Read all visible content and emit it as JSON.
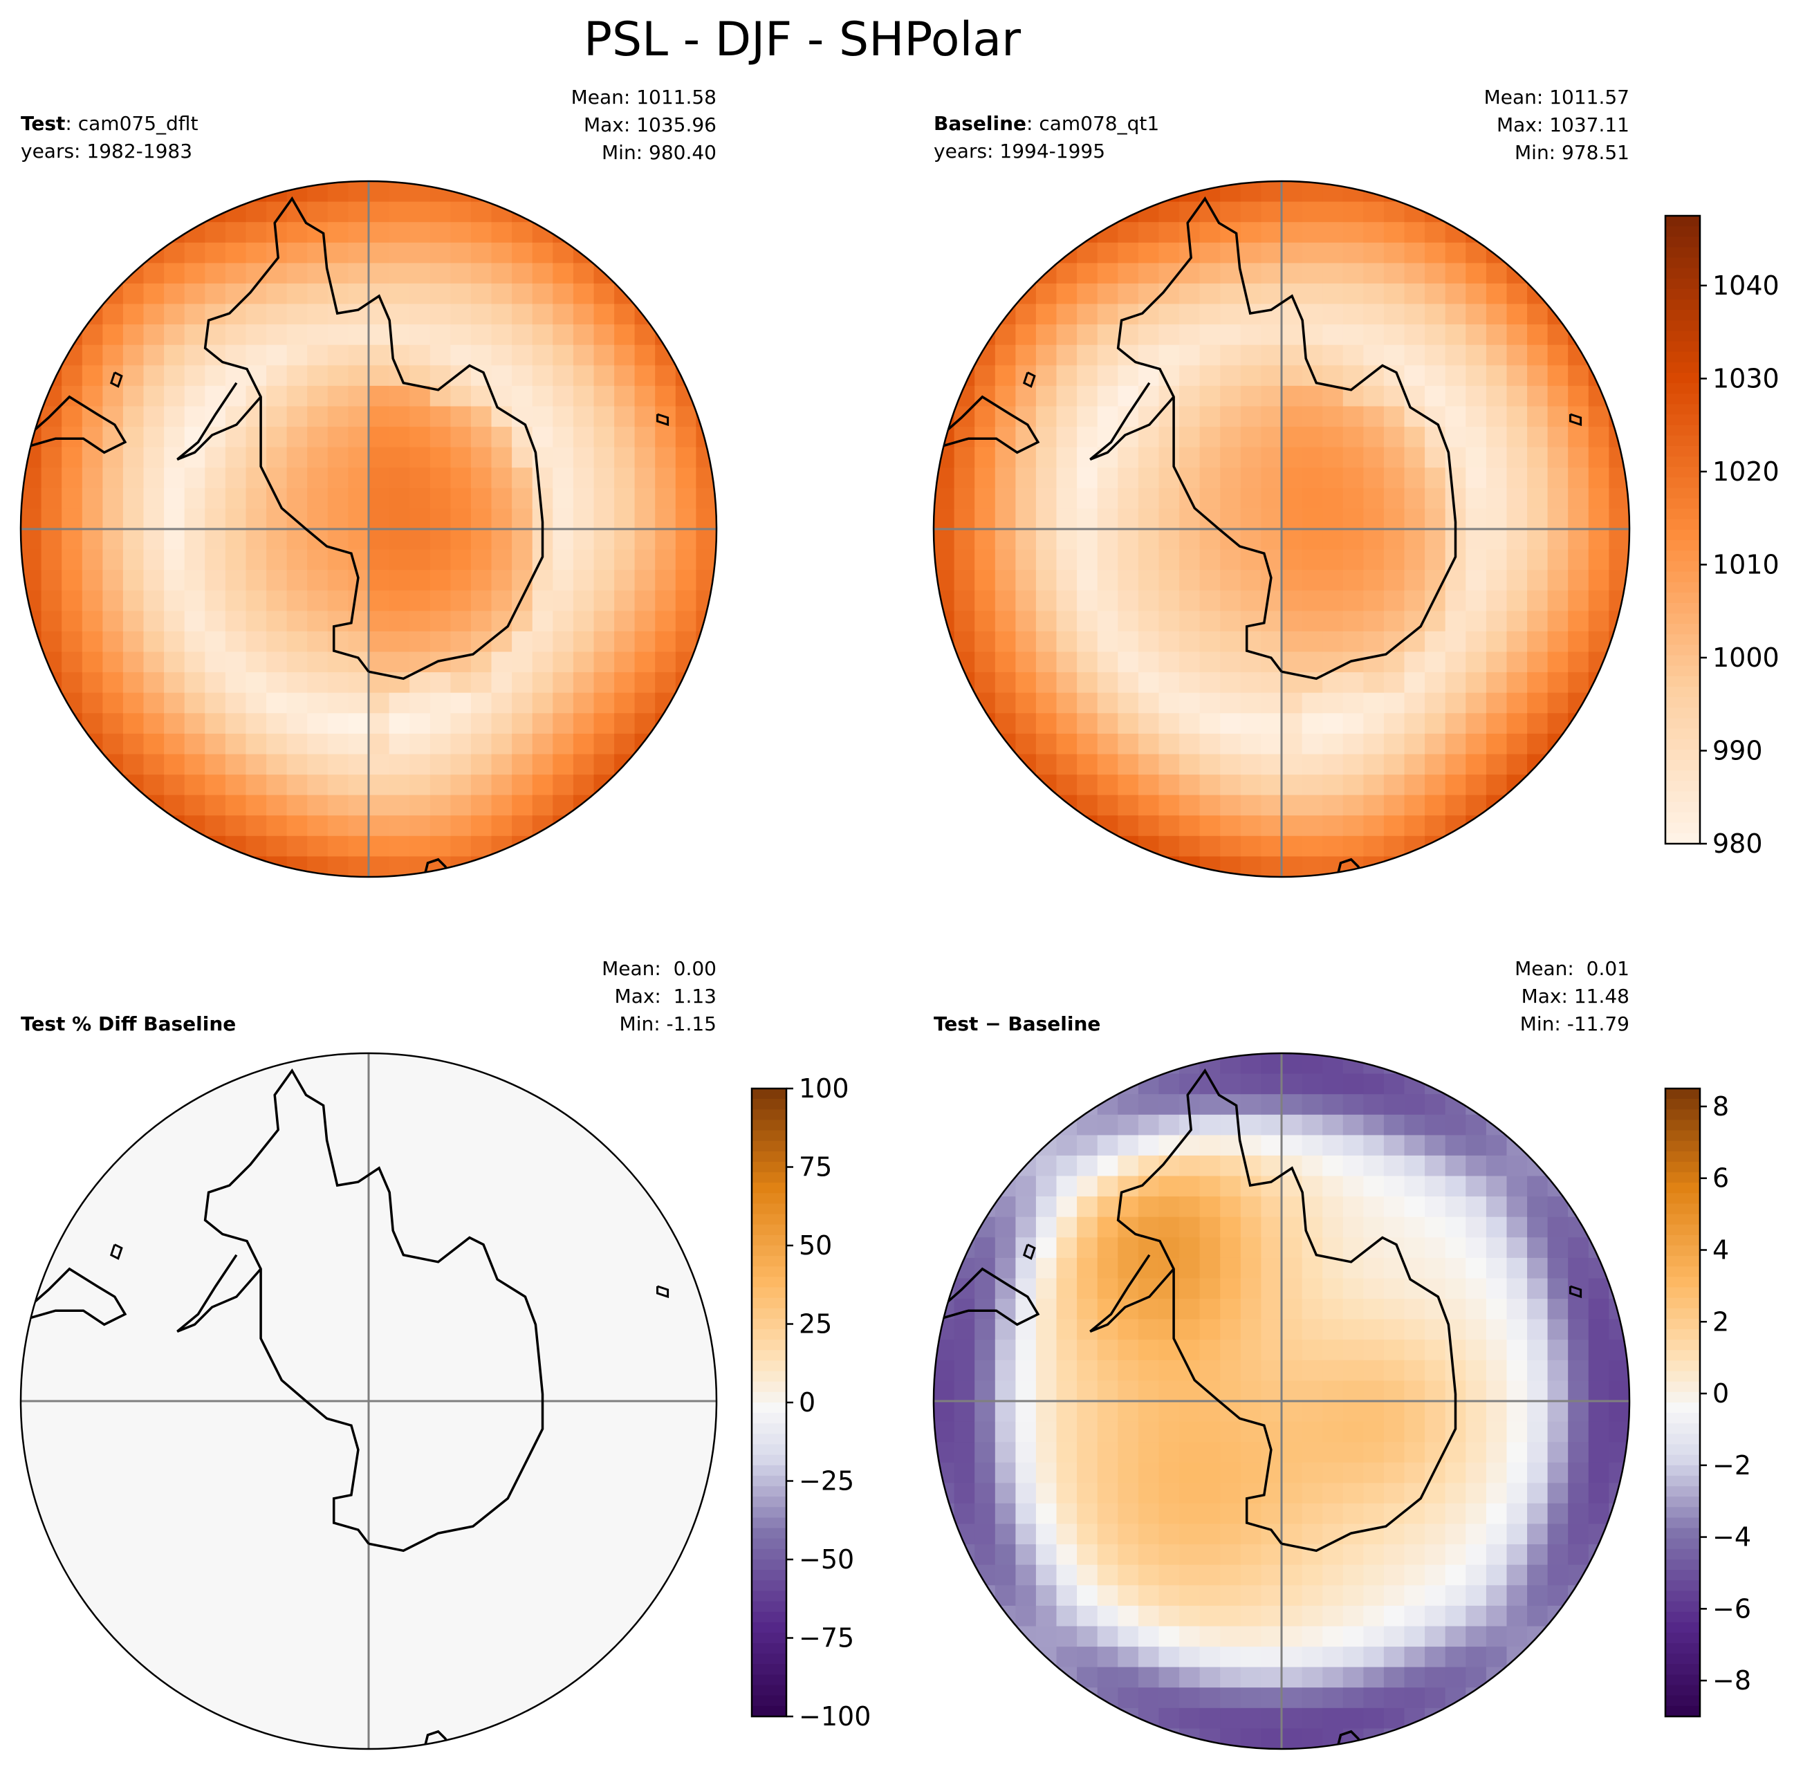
{
  "title": "PSL - DJF - SHPolar",
  "chart_data": [
    {
      "type": "heatmap",
      "projection": "south-polar-stereographic",
      "label_bold": "Test",
      "label_case": ": cam075_dflt",
      "years": "years: 1982-1983",
      "stats": [
        "Mean: 1011.58",
        "Max: 1035.96",
        "Min: 980.40"
      ],
      "field": {
        "mode": "psl",
        "low_at_ring": 0.56,
        "continent_high": 1011,
        "rim": 1024,
        "polar_bump": 6
      },
      "colormap": "Oranges"
    },
    {
      "type": "heatmap",
      "projection": "south-polar-stereographic",
      "label_bold": "Baseline",
      "label_case": ": cam078_qt1",
      "years": "years: 1994-1995",
      "stats": [
        "Mean: 1011.57",
        "Max: 1037.11",
        "Min: 978.51"
      ],
      "field": {
        "mode": "psl",
        "low_at_ring": 0.58,
        "continent_high": 1008,
        "rim": 1025,
        "polar_bump": 4
      },
      "colormap": "Oranges",
      "colorbar": {
        "min": 980,
        "max": 1047.5,
        "ticks": [
          980,
          990,
          1000,
          1010,
          1020,
          1030,
          1040
        ]
      }
    },
    {
      "type": "heatmap",
      "projection": "south-polar-stereographic",
      "label_bold": "Test % Diff Baseline",
      "stats": [
        "Mean:  0.00",
        "Max:  1.13",
        "Min: -1.15"
      ],
      "field": {
        "mode": "flat",
        "value": 0
      },
      "colormap": "PuOr_r",
      "colorbar": {
        "min": -100,
        "max": 100,
        "ticks": [
          100,
          75,
          50,
          25,
          0,
          -25,
          -50,
          -75,
          -100
        ]
      }
    },
    {
      "type": "heatmap",
      "projection": "south-polar-stereographic",
      "label_bold": "Test − Baseline",
      "stats": [
        "Mean:  0.01",
        "Max: 11.48",
        "Min: -11.79"
      ],
      "field": {
        "mode": "diff",
        "positive_center": 4.5,
        "negative_ring": -5.5
      },
      "colormap": "PuOr_r",
      "colorbar": {
        "min": -9,
        "max": 8.5,
        "ticks": [
          8,
          6,
          4,
          2,
          0,
          -2,
          -4,
          -6,
          -8
        ]
      }
    }
  ],
  "colors": {
    "axis_line": "#7f7f7f",
    "coast": "#000000"
  }
}
